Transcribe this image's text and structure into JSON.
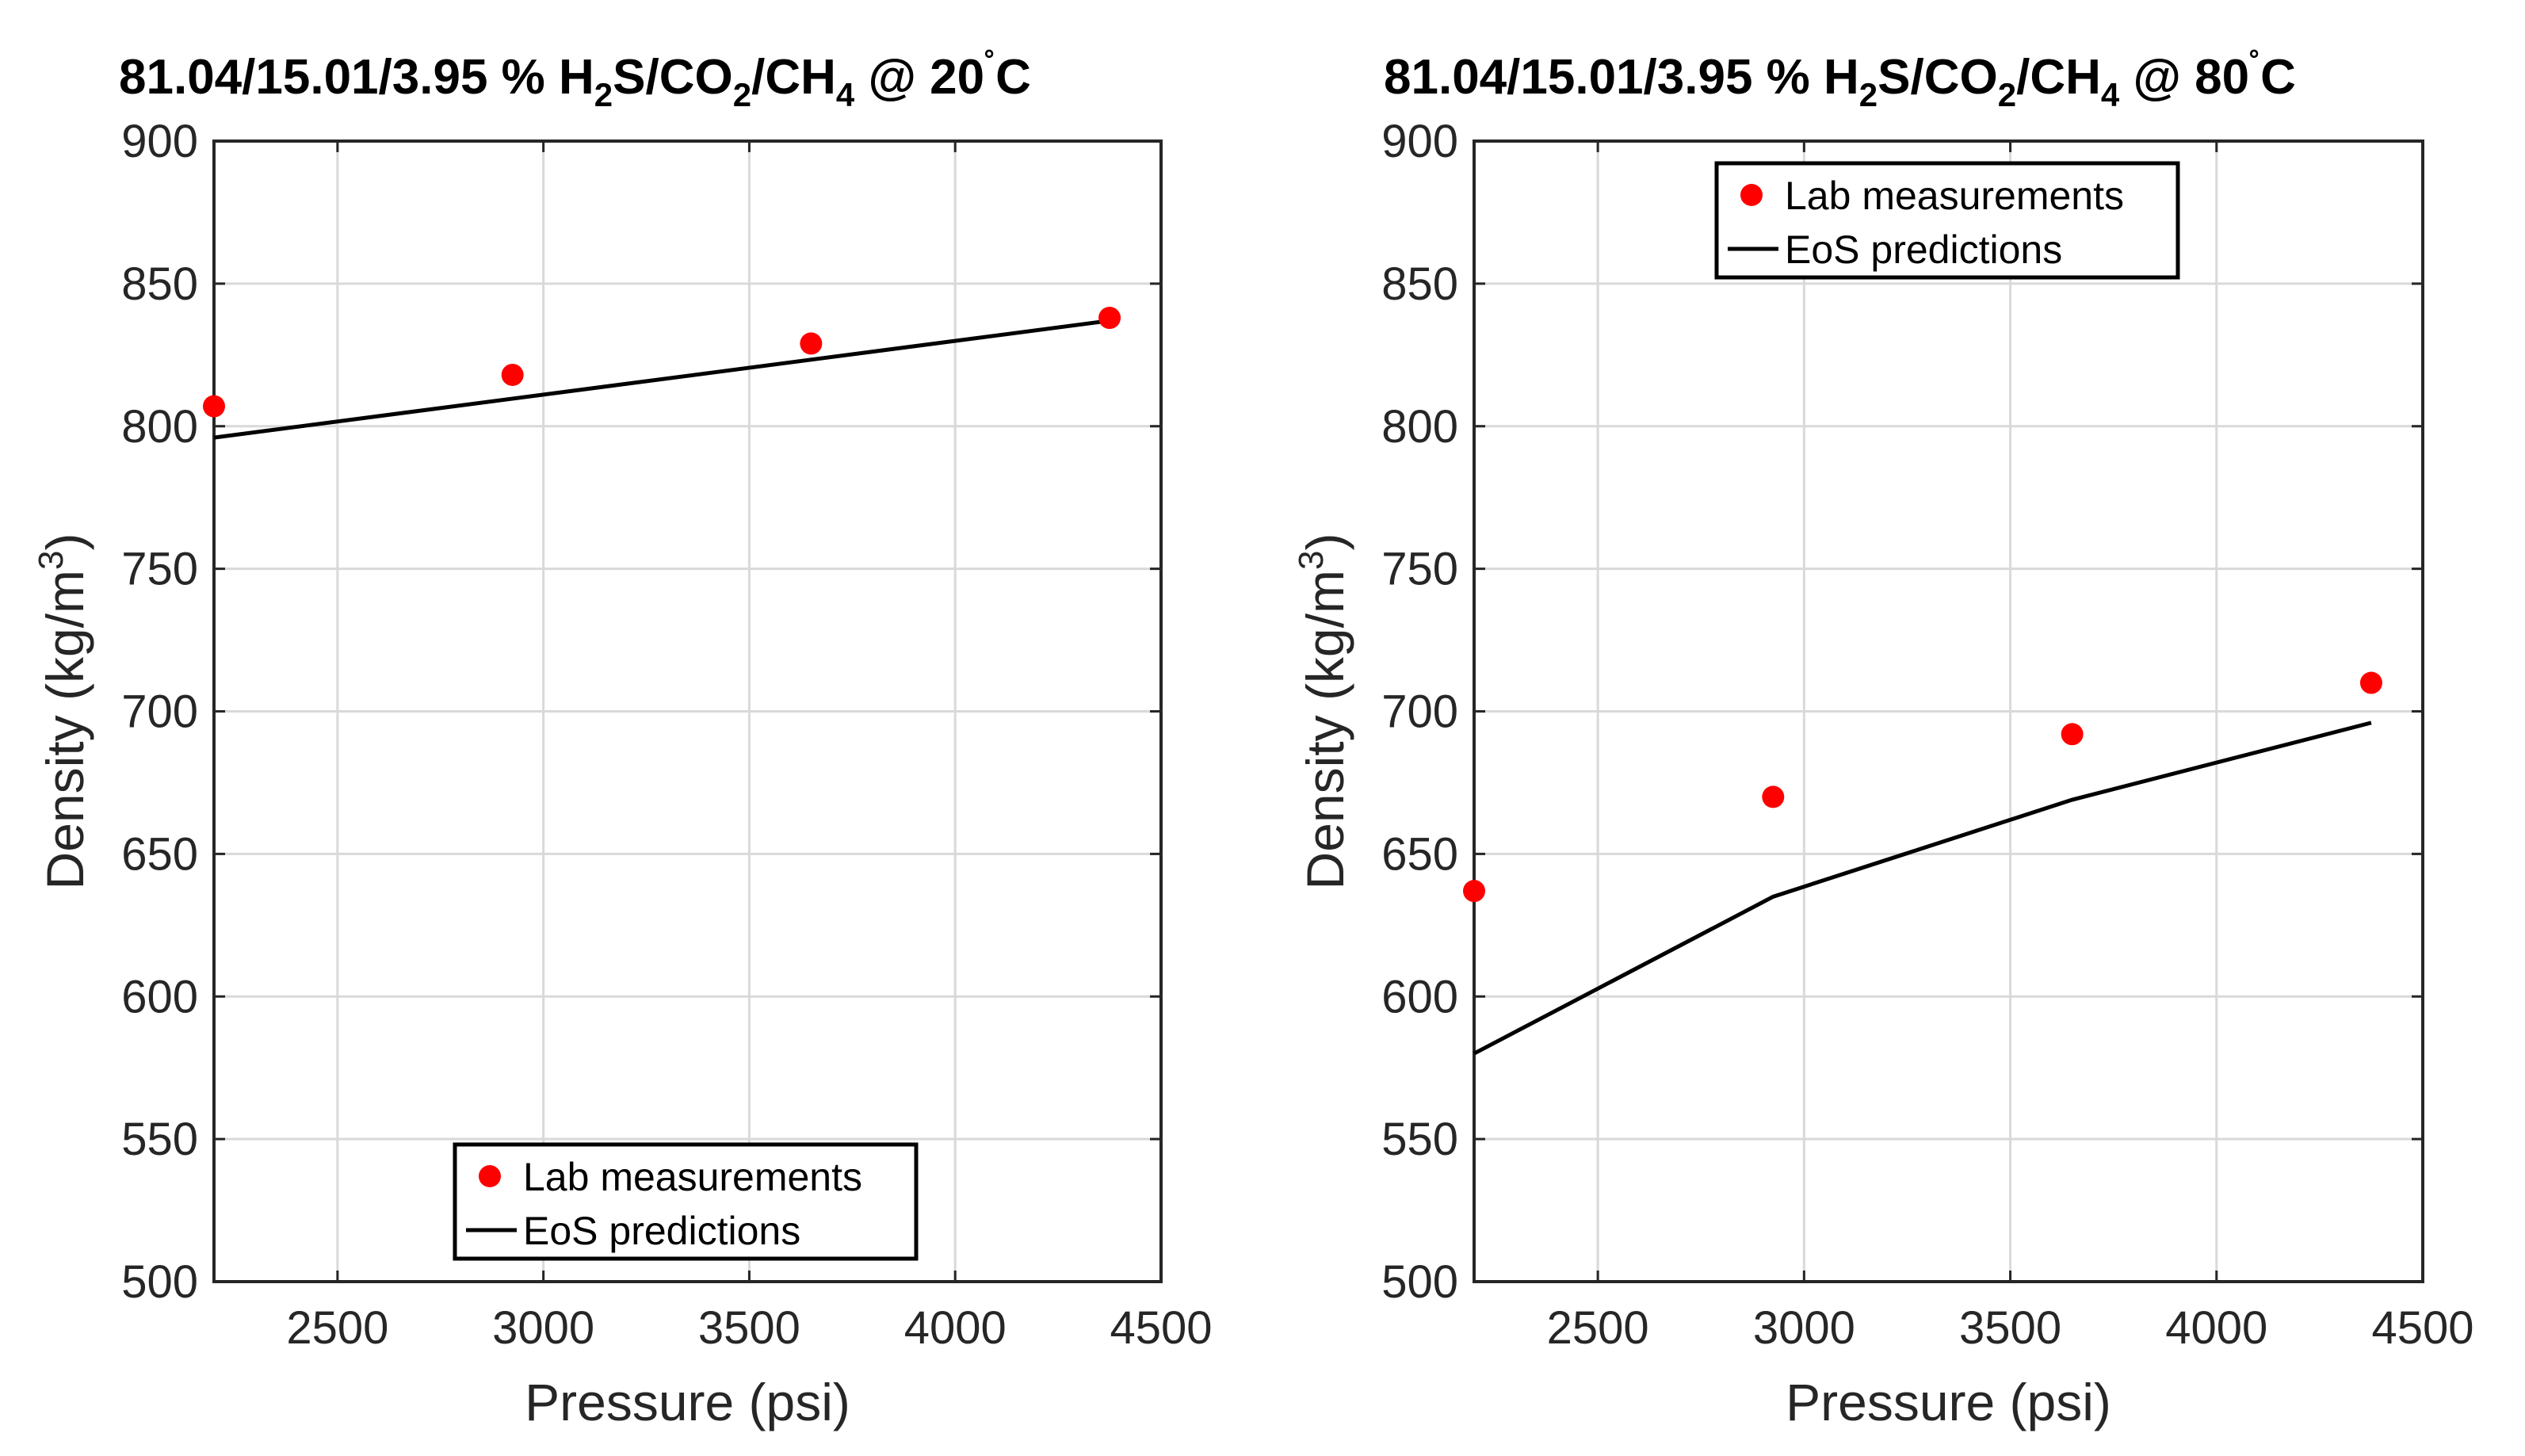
{
  "colors": {
    "lab": "#ff0000",
    "eos": "#000000"
  },
  "chart_data": [
    {
      "type": "line",
      "title": "81.04/15.01/3.95 % H₂S/CO₂/CH₄ @ 20˚C",
      "title_parts": [
        "81.04/15.01/3.95 % H",
        "2",
        "S/CO",
        "2",
        "/CH",
        "4",
        " @ 20",
        "˚",
        "C"
      ],
      "xlabel": "Pressure (psi)",
      "ylabel": "Density (kg/m",
      "ylabel_sup": "3",
      "ylabel_close": ")",
      "xlim": [
        2200,
        4500
      ],
      "ylim": [
        500,
        900
      ],
      "xticks": [
        2500,
        3000,
        3500,
        4000,
        4500
      ],
      "yticks": [
        500,
        550,
        600,
        650,
        700,
        750,
        800,
        850,
        900
      ],
      "grid": true,
      "legend_position": "bottom-center",
      "series": [
        {
          "name": "Lab measurements",
          "style": "markers",
          "x": [
            2200,
            2925,
            3650,
            4375
          ],
          "y": [
            807,
            818,
            829,
            838
          ]
        },
        {
          "name": "EoS predictions",
          "style": "line",
          "x": [
            2200,
            4375
          ],
          "y": [
            796,
            837
          ]
        }
      ]
    },
    {
      "type": "line",
      "title": "81.04/15.01/3.95 % H₂S/CO₂/CH₄ @ 80˚C",
      "title_parts": [
        "81.04/15.01/3.95 % H",
        "2",
        "S/CO",
        "2",
        "/CH",
        "4",
        " @ 80",
        "˚",
        "C"
      ],
      "xlabel": "Pressure (psi)",
      "ylabel": "Density (kg/m",
      "ylabel_sup": "3",
      "ylabel_close": ")",
      "xlim": [
        2200,
        4500
      ],
      "ylim": [
        500,
        900
      ],
      "xticks": [
        2500,
        3000,
        3500,
        4000,
        4500
      ],
      "yticks": [
        500,
        550,
        600,
        650,
        700,
        750,
        800,
        850,
        900
      ],
      "grid": true,
      "legend_position": "top-center",
      "series": [
        {
          "name": "Lab measurements",
          "style": "markers",
          "x": [
            2200,
            2925,
            3650,
            4375
          ],
          "y": [
            637,
            670,
            692,
            710
          ]
        },
        {
          "name": "EoS predictions",
          "style": "line",
          "x": [
            2200,
            2925,
            3650,
            4375
          ],
          "y": [
            580,
            635,
            669,
            696
          ]
        }
      ]
    }
  ]
}
